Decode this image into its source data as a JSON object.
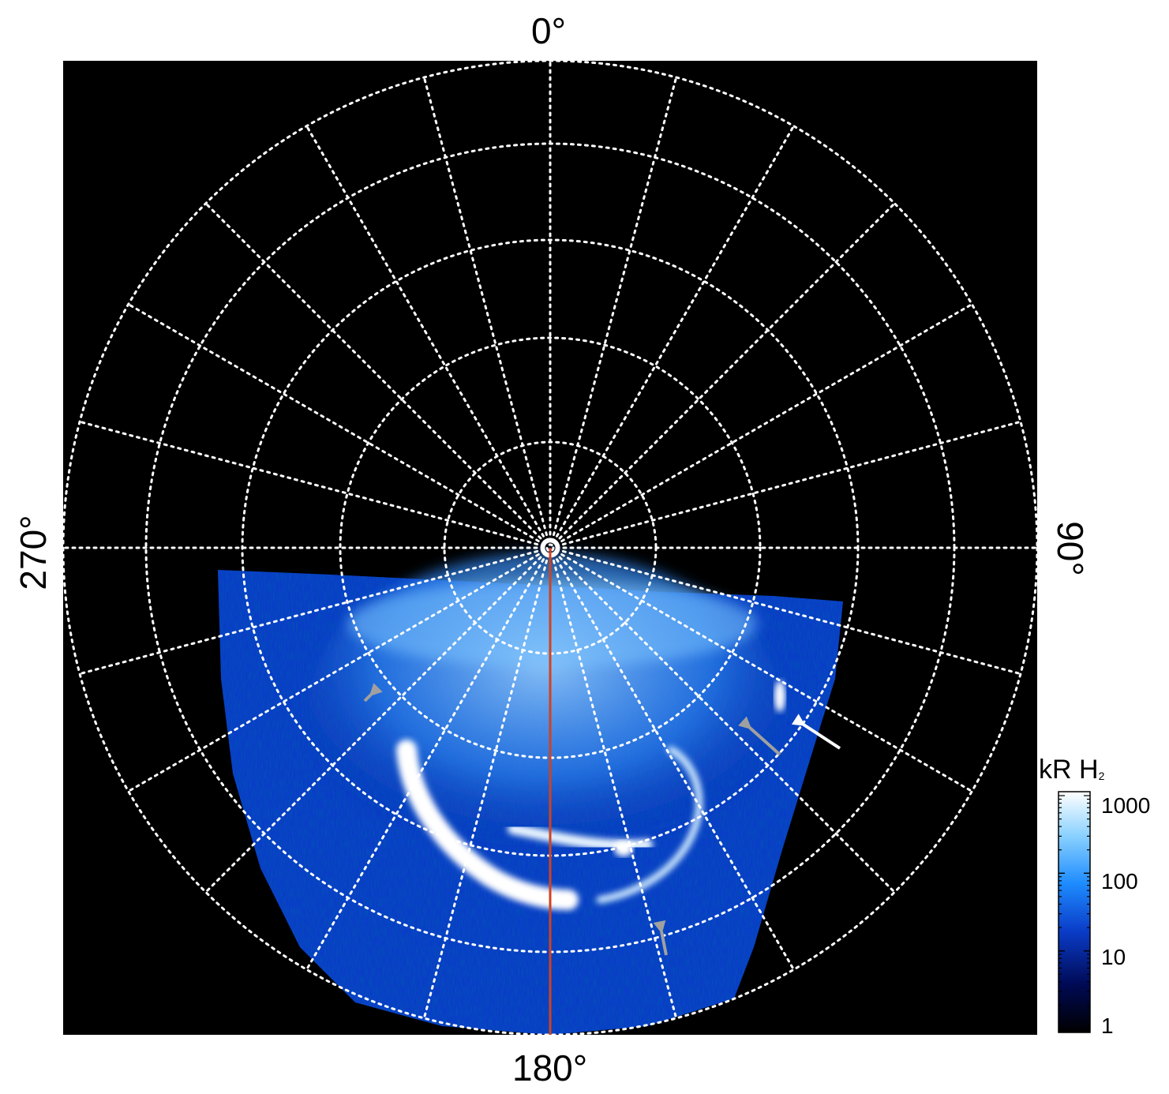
{
  "axis_labels": {
    "top": "0°",
    "right": "90°",
    "bottom": "180°",
    "left": "270°"
  },
  "colorbar": {
    "title_main": "kR H",
    "title_sub": "2",
    "scale": "log",
    "range": [
      1,
      1000
    ],
    "ticks": [
      "1000",
      "100",
      "10",
      "1"
    ],
    "colors": [
      "#000000",
      "#000a55",
      "#0a3cc8",
      "#1e8cff",
      "#8cd2ff",
      "#ffffff"
    ]
  },
  "colors": {
    "background": "#000000",
    "grid": "#ffffff",
    "meridian_line": "#d2421e",
    "arrow_white": "#ffffff",
    "arrow_grey": "#a0a0a0"
  },
  "annotations": {
    "arrows": [
      {
        "color": "grey"
      },
      {
        "color": "grey"
      },
      {
        "color": "grey"
      },
      {
        "color": "white"
      }
    ]
  }
}
